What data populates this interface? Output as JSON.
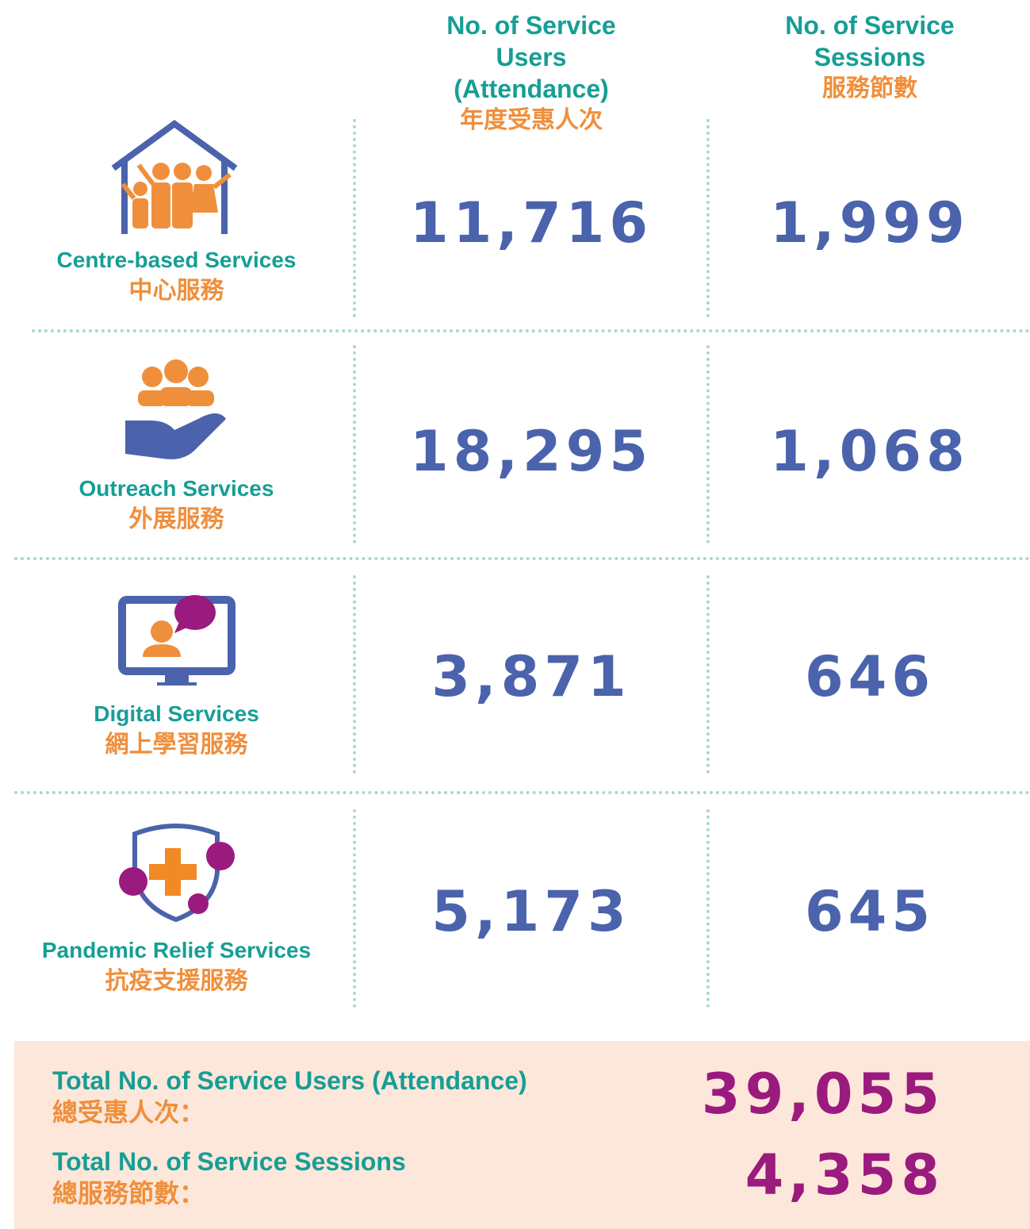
{
  "header": {
    "users_en": "No. of Service Users (Attendance)",
    "users_zh": "年度受惠人次",
    "sessions_en": "No. of Service Sessions",
    "sessions_zh": "服務節數"
  },
  "rows": [
    {
      "name_en": "Centre-based Services",
      "name_zh": "中心服務",
      "users": "11,716",
      "sessions": "1,999"
    },
    {
      "name_en": "Outreach Services",
      "name_zh": "外展服務",
      "users": "18,295",
      "sessions": "1,068"
    },
    {
      "name_en": "Digital Services",
      "name_zh": "網上學習服務",
      "users": "3,871",
      "sessions": "646"
    },
    {
      "name_en": "Pandemic Relief Services",
      "name_zh": "抗疫支援服務",
      "users": "5,173",
      "sessions": "645"
    }
  ],
  "totals": {
    "users_en": "Total No. of Service Users (Attendance)",
    "users_zh": "總受惠人次：",
    "users": "39,055",
    "sessions_en": "Total No. of Service Sessions",
    "sessions_zh": "總服務節數：",
    "sessions": "4,358"
  }
}
